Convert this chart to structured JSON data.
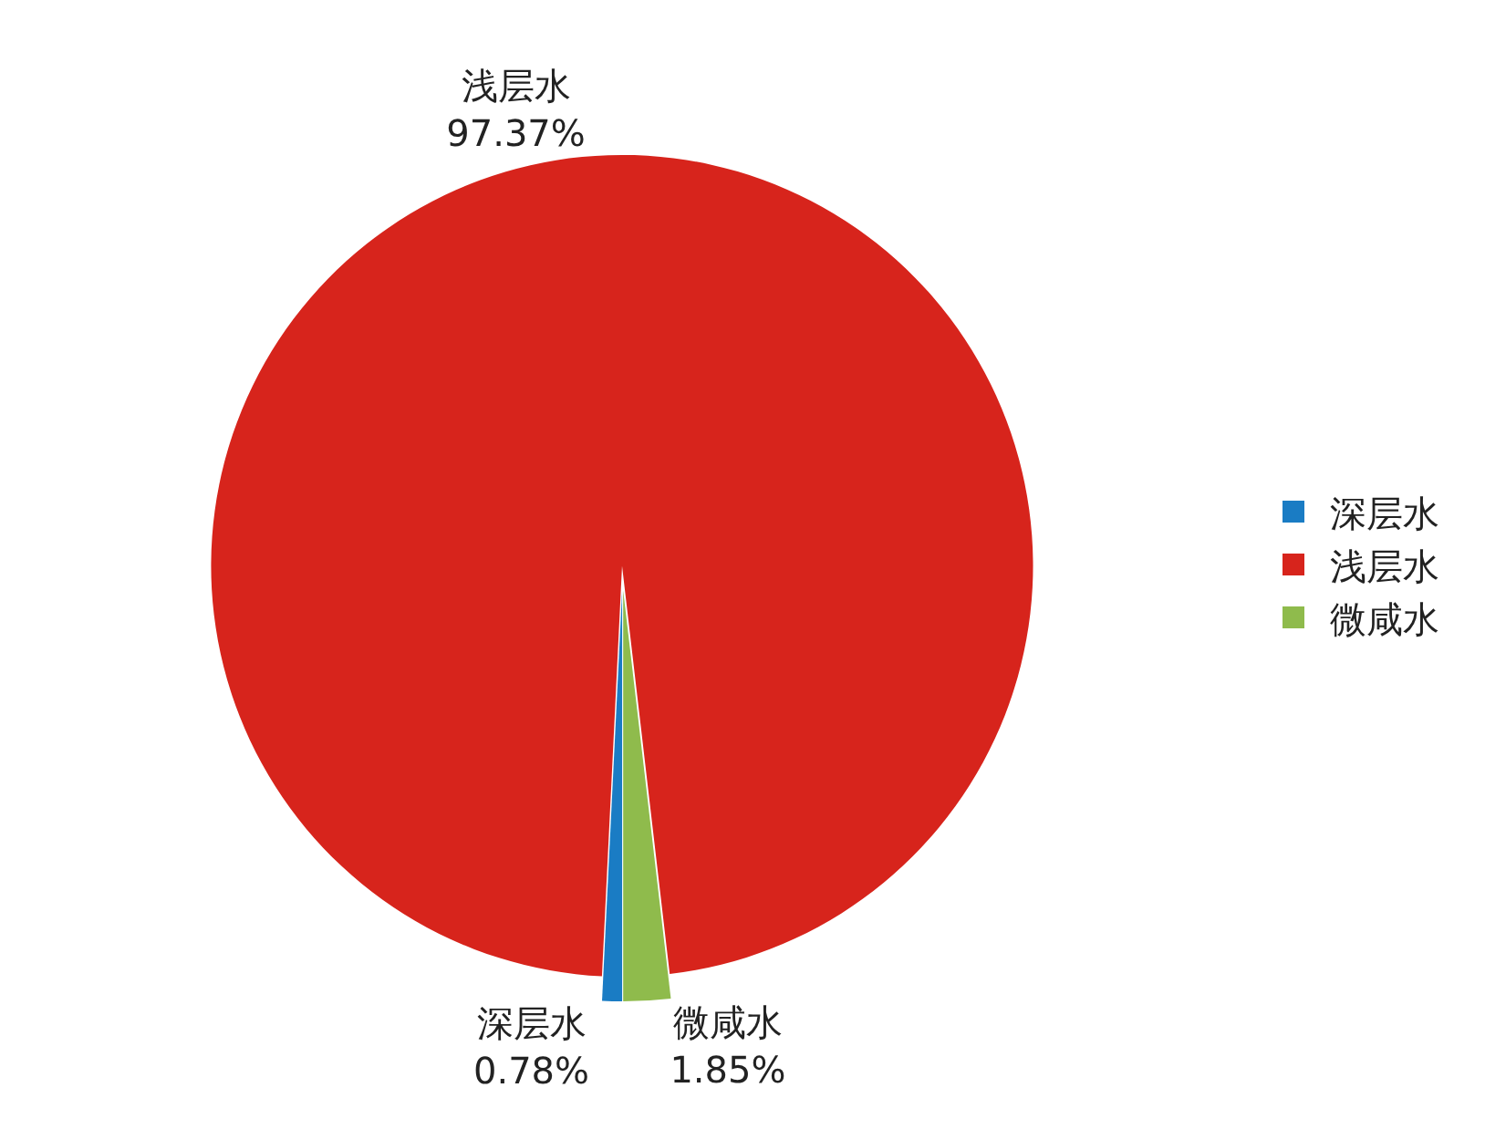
{
  "chart_data": {
    "type": "pie",
    "categories": [
      "深层水",
      "浅层水",
      "微咸水"
    ],
    "values": [
      0.78,
      97.37,
      1.85
    ],
    "colors": [
      "#1a7cc4",
      "#d7241c",
      "#8fbb4c"
    ],
    "value_labels": [
      "0.78%",
      "97.37%",
      "1.85%"
    ],
    "legend": "right"
  }
}
